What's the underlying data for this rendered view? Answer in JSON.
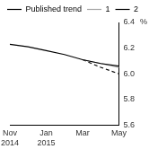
{
  "chart_data": {
    "type": "line",
    "categories": [
      "Nov 2014",
      null,
      "Jan 2015",
      null,
      "Mar",
      null,
      "May"
    ],
    "series": [
      {
        "name": "Published trend",
        "color": "#000000",
        "line_style": "solid",
        "values": [
          6.23,
          6.21,
          6.18,
          6.15,
          6.11,
          6.08,
          6.06
        ]
      },
      {
        "name": "1",
        "color": "#a6a6a6",
        "line_style": "solid",
        "values": [
          null,
          null,
          null,
          null,
          6.11,
          6.08,
          6.05
        ]
      },
      {
        "name": "2",
        "color": "#000000",
        "line_style": "dashed",
        "values": [
          null,
          null,
          null,
          null,
          6.11,
          6.05,
          6.0
        ]
      }
    ],
    "y_label": "%",
    "ylim": [
      5.6,
      6.4
    ],
    "yticks": [
      5.6,
      5.8,
      {
        "value": 6,
        "label": "6.0"
      },
      6.2,
      6.4
    ],
    "grid": false,
    "legend": "top-left"
  }
}
